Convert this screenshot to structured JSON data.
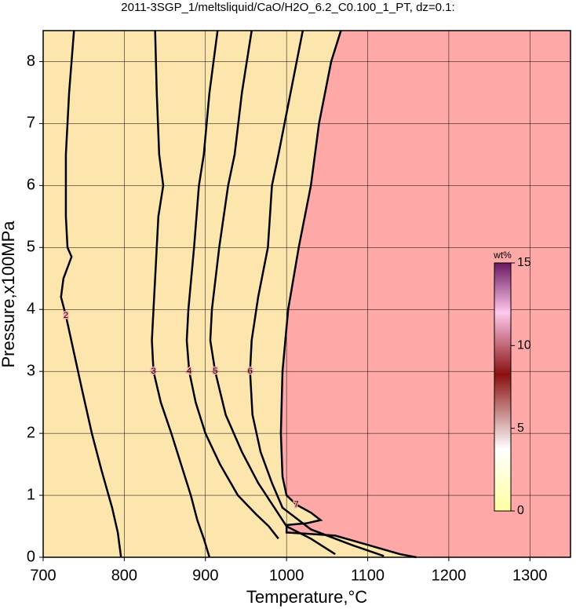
{
  "chart_data": {
    "type": "contour",
    "title": "2011-3SGP_1/meltsliquid/CaO/H2O_6.2_C0.100_1_PT, dz=0.1:",
    "x_label": "Temperature,°C",
    "y_label": "Pressure,x100MPa",
    "xlim": [
      700,
      1350
    ],
    "ylim": [
      0,
      8.5
    ],
    "xticks": [
      700,
      800,
      900,
      1000,
      1100,
      1200,
      1300
    ],
    "yticks": [
      0,
      1,
      2,
      3,
      4,
      5,
      6,
      7,
      8
    ],
    "grid": true,
    "background_color": "#ffa8a8",
    "region_color": "#fde6ae",
    "series": [
      {
        "name": "2",
        "x": [
          738,
          732,
          728,
          728,
          730,
          735,
          725,
          722,
          728,
          738,
          748,
          760,
          772,
          785,
          792,
          796
        ],
        "values": [
          8.5,
          7.5,
          6.5,
          5.5,
          5.0,
          4.85,
          4.5,
          4.2,
          3.9,
          3.3,
          2.7,
          2.0,
          1.4,
          0.8,
          0.4,
          0
        ]
      },
      {
        "name": "3",
        "x": [
          838,
          840,
          843,
          848,
          842,
          838,
          834,
          836,
          845,
          858,
          870,
          882,
          890,
          898,
          905
        ],
        "values": [
          8.5,
          7.5,
          6.5,
          6.0,
          5.5,
          4.5,
          3.5,
          3.0,
          2.5,
          2.0,
          1.5,
          1.0,
          0.6,
          0.3,
          0
        ]
      },
      {
        "name": "4",
        "x": [
          915,
          905,
          898,
          892,
          886,
          879,
          877,
          880,
          888,
          900,
          918,
          940,
          962,
          978,
          990
        ],
        "values": [
          8.5,
          7.5,
          6.5,
          6.0,
          5.0,
          4.0,
          3.5,
          3.0,
          2.5,
          2.0,
          1.5,
          1.0,
          0.7,
          0.5,
          0.3
        ]
      },
      {
        "name": "5",
        "x": [
          957,
          945,
          936,
          928,
          917,
          908,
          906,
          912,
          925,
          945,
          965,
          985,
          1000,
          1030,
          1060
        ],
        "values": [
          8.5,
          7.5,
          6.5,
          6.0,
          5.0,
          4.0,
          3.5,
          3.0,
          2.3,
          1.7,
          1.2,
          0.8,
          0.5,
          0.3,
          0.05
        ]
      },
      {
        "name": "6",
        "x": [
          1020,
          1005,
          990,
          982,
          977,
          965,
          957,
          955,
          958,
          968,
          982,
          995,
          1030,
          1080,
          1120
        ],
        "values": [
          8.5,
          7.5,
          6.5,
          6.0,
          5.0,
          4.2,
          3.5,
          3.0,
          2.3,
          1.7,
          1.2,
          0.8,
          0.45,
          0.2,
          0.02
        ]
      },
      {
        "name": "7",
        "x": [
          1067,
          1055,
          1040,
          1030,
          1015,
          1002,
          995,
          993,
          995,
          1000,
          1012,
          1030,
          1042,
          1025,
          1000,
          1000,
          1060,
          1100,
          1140,
          1160
        ],
        "values": [
          8.5,
          8.0,
          7.0,
          6.0,
          5.0,
          4.0,
          3.0,
          2.0,
          1.3,
          1.0,
          0.85,
          0.72,
          0.6,
          0.55,
          0.52,
          0.4,
          0.35,
          0.2,
          0.05,
          0
        ]
      }
    ],
    "colorbar": {
      "label": "wt%",
      "lim": [
        0,
        15
      ],
      "ticks": [
        0,
        5,
        10,
        15
      ]
    }
  }
}
